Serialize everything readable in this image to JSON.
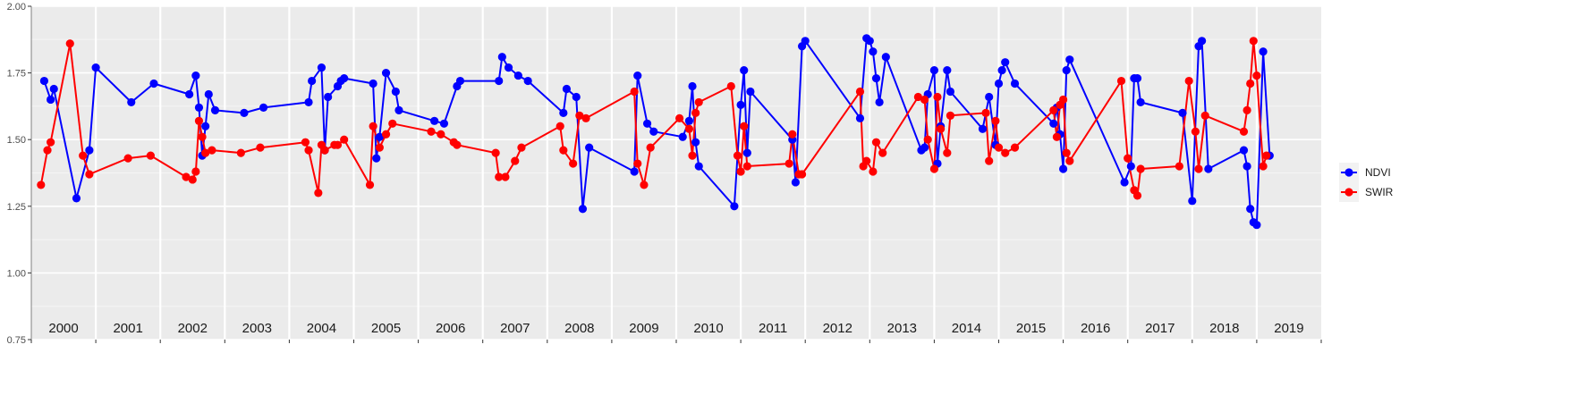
{
  "chart_data": {
    "type": "line",
    "title": "",
    "xlabel": "",
    "ylabel": "",
    "ylim": [
      0.75,
      2.0
    ],
    "yticks": [
      "0.75",
      "1.00",
      "1.25",
      "1.50",
      "1.75",
      "2.00"
    ],
    "years": [
      "2000",
      "2001",
      "2002",
      "2003",
      "2004",
      "2005",
      "2006",
      "2007",
      "2008",
      "2009",
      "2010",
      "2011",
      "2012",
      "2013",
      "2014",
      "2015",
      "2016",
      "2017",
      "2018",
      "2019"
    ],
    "grid": true,
    "legend_position": "right",
    "series": [
      {
        "name": "NDVI",
        "color": "#0000ff",
        "points": [
          [
            2000.2,
            1.72
          ],
          [
            2000.3,
            1.65
          ],
          [
            2000.35,
            1.69
          ],
          [
            2000.7,
            1.28
          ],
          [
            2000.9,
            1.46
          ],
          [
            2001.0,
            1.77
          ],
          [
            2001.55,
            1.64
          ],
          [
            2001.9,
            1.71
          ],
          [
            2002.45,
            1.67
          ],
          [
            2002.55,
            1.74
          ],
          [
            2002.6,
            1.62
          ],
          [
            2002.65,
            1.44
          ],
          [
            2002.7,
            1.55
          ],
          [
            2002.75,
            1.67
          ],
          [
            2002.85,
            1.61
          ],
          [
            2003.3,
            1.6
          ],
          [
            2003.6,
            1.62
          ],
          [
            2004.3,
            1.64
          ],
          [
            2004.35,
            1.72
          ],
          [
            2004.5,
            1.77
          ],
          [
            2004.55,
            1.46
          ],
          [
            2004.6,
            1.66
          ],
          [
            2004.75,
            1.7
          ],
          [
            2004.8,
            1.72
          ],
          [
            2004.85,
            1.73
          ],
          [
            2005.3,
            1.71
          ],
          [
            2005.35,
            1.43
          ],
          [
            2005.4,
            1.51
          ],
          [
            2005.5,
            1.75
          ],
          [
            2005.65,
            1.68
          ],
          [
            2005.7,
            1.61
          ],
          [
            2006.25,
            1.57
          ],
          [
            2006.4,
            1.56
          ],
          [
            2006.6,
            1.7
          ],
          [
            2006.65,
            1.72
          ],
          [
            2007.25,
            1.72
          ],
          [
            2007.3,
            1.81
          ],
          [
            2007.4,
            1.77
          ],
          [
            2007.55,
            1.74
          ],
          [
            2007.7,
            1.72
          ],
          [
            2008.25,
            1.6
          ],
          [
            2008.3,
            1.69
          ],
          [
            2008.45,
            1.66
          ],
          [
            2008.55,
            1.24
          ],
          [
            2008.65,
            1.47
          ],
          [
            2009.35,
            1.38
          ],
          [
            2009.4,
            1.74
          ],
          [
            2009.55,
            1.56
          ],
          [
            2009.65,
            1.53
          ],
          [
            2010.1,
            1.51
          ],
          [
            2010.2,
            1.57
          ],
          [
            2010.25,
            1.7
          ],
          [
            2010.3,
            1.49
          ],
          [
            2010.35,
            1.4
          ],
          [
            2010.9,
            1.25
          ],
          [
            2011.0,
            1.63
          ],
          [
            2011.05,
            1.76
          ],
          [
            2011.1,
            1.45
          ],
          [
            2011.15,
            1.68
          ],
          [
            2011.8,
            1.5
          ],
          [
            2011.85,
            1.34
          ],
          [
            2011.95,
            1.85
          ],
          [
            2012.0,
            1.87
          ],
          [
            2012.85,
            1.58
          ],
          [
            2012.95,
            1.88
          ],
          [
            2013.0,
            1.87
          ],
          [
            2013.05,
            1.83
          ],
          [
            2013.1,
            1.73
          ],
          [
            2013.15,
            1.64
          ],
          [
            2013.25,
            1.81
          ],
          [
            2013.8,
            1.46
          ],
          [
            2013.85,
            1.47
          ],
          [
            2013.9,
            1.67
          ],
          [
            2014.0,
            1.76
          ],
          [
            2014.05,
            1.41
          ],
          [
            2014.1,
            1.55
          ],
          [
            2014.2,
            1.76
          ],
          [
            2014.25,
            1.68
          ],
          [
            2014.75,
            1.54
          ],
          [
            2014.85,
            1.66
          ],
          [
            2014.95,
            1.48
          ],
          [
            2015.0,
            1.71
          ],
          [
            2015.05,
            1.76
          ],
          [
            2015.1,
            1.79
          ],
          [
            2015.25,
            1.71
          ],
          [
            2015.85,
            1.56
          ],
          [
            2015.9,
            1.62
          ],
          [
            2015.95,
            1.52
          ],
          [
            2016.0,
            1.39
          ],
          [
            2016.05,
            1.76
          ],
          [
            2016.1,
            1.8
          ],
          [
            2016.95,
            1.34
          ],
          [
            2017.05,
            1.4
          ],
          [
            2017.1,
            1.73
          ],
          [
            2017.15,
            1.73
          ],
          [
            2017.2,
            1.64
          ],
          [
            2017.85,
            1.6
          ],
          [
            2018.0,
            1.27
          ],
          [
            2018.1,
            1.85
          ],
          [
            2018.15,
            1.87
          ],
          [
            2018.25,
            1.39
          ],
          [
            2018.8,
            1.46
          ],
          [
            2018.85,
            1.4
          ],
          [
            2018.9,
            1.24
          ],
          [
            2018.95,
            1.19
          ],
          [
            2019.0,
            1.18
          ],
          [
            2019.1,
            1.83
          ],
          [
            2019.2,
            1.44
          ]
        ]
      },
      {
        "name": "SWIR",
        "color": "#ff0000",
        "points": [
          [
            2000.15,
            1.33
          ],
          [
            2000.25,
            1.46
          ],
          [
            2000.3,
            1.49
          ],
          [
            2000.6,
            1.86
          ],
          [
            2000.8,
            1.44
          ],
          [
            2000.9,
            1.37
          ],
          [
            2001.5,
            1.43
          ],
          [
            2001.85,
            1.44
          ],
          [
            2002.4,
            1.36
          ],
          [
            2002.5,
            1.35
          ],
          [
            2002.55,
            1.38
          ],
          [
            2002.6,
            1.57
          ],
          [
            2002.65,
            1.51
          ],
          [
            2002.7,
            1.45
          ],
          [
            2002.8,
            1.46
          ],
          [
            2003.25,
            1.45
          ],
          [
            2003.55,
            1.47
          ],
          [
            2004.25,
            1.49
          ],
          [
            2004.3,
            1.46
          ],
          [
            2004.45,
            1.3
          ],
          [
            2004.5,
            1.48
          ],
          [
            2004.55,
            1.46
          ],
          [
            2004.7,
            1.48
          ],
          [
            2004.75,
            1.48
          ],
          [
            2004.85,
            1.5
          ],
          [
            2005.25,
            1.33
          ],
          [
            2005.3,
            1.55
          ],
          [
            2005.4,
            1.47
          ],
          [
            2005.5,
            1.52
          ],
          [
            2005.6,
            1.56
          ],
          [
            2006.2,
            1.53
          ],
          [
            2006.35,
            1.52
          ],
          [
            2006.55,
            1.49
          ],
          [
            2006.6,
            1.48
          ],
          [
            2007.2,
            1.45
          ],
          [
            2007.25,
            1.36
          ],
          [
            2007.35,
            1.36
          ],
          [
            2007.5,
            1.42
          ],
          [
            2007.6,
            1.47
          ],
          [
            2008.2,
            1.55
          ],
          [
            2008.25,
            1.46
          ],
          [
            2008.4,
            1.41
          ],
          [
            2008.5,
            1.59
          ],
          [
            2008.6,
            1.58
          ],
          [
            2009.35,
            1.68
          ],
          [
            2009.4,
            1.41
          ],
          [
            2009.5,
            1.33
          ],
          [
            2009.6,
            1.47
          ],
          [
            2010.05,
            1.58
          ],
          [
            2010.2,
            1.54
          ],
          [
            2010.25,
            1.44
          ],
          [
            2010.3,
            1.6
          ],
          [
            2010.35,
            1.64
          ],
          [
            2010.85,
            1.7
          ],
          [
            2010.95,
            1.44
          ],
          [
            2011.0,
            1.38
          ],
          [
            2011.05,
            1.55
          ],
          [
            2011.1,
            1.4
          ],
          [
            2011.75,
            1.41
          ],
          [
            2011.8,
            1.52
          ],
          [
            2011.9,
            1.37
          ],
          [
            2011.95,
            1.37
          ],
          [
            2012.85,
            1.68
          ],
          [
            2012.9,
            1.4
          ],
          [
            2012.95,
            1.42
          ],
          [
            2013.05,
            1.38
          ],
          [
            2013.1,
            1.49
          ],
          [
            2013.2,
            1.45
          ],
          [
            2013.75,
            1.66
          ],
          [
            2013.85,
            1.65
          ],
          [
            2013.9,
            1.5
          ],
          [
            2014.0,
            1.39
          ],
          [
            2014.05,
            1.66
          ],
          [
            2014.1,
            1.54
          ],
          [
            2014.2,
            1.45
          ],
          [
            2014.25,
            1.59
          ],
          [
            2014.8,
            1.6
          ],
          [
            2014.85,
            1.42
          ],
          [
            2014.95,
            1.57
          ],
          [
            2015.0,
            1.47
          ],
          [
            2015.1,
            1.45
          ],
          [
            2015.25,
            1.47
          ],
          [
            2015.85,
            1.61
          ],
          [
            2015.9,
            1.51
          ],
          [
            2015.95,
            1.63
          ],
          [
            2016.0,
            1.65
          ],
          [
            2016.05,
            1.45
          ],
          [
            2016.1,
            1.42
          ],
          [
            2016.9,
            1.72
          ],
          [
            2017.0,
            1.43
          ],
          [
            2017.1,
            1.31
          ],
          [
            2017.15,
            1.29
          ],
          [
            2017.2,
            1.39
          ],
          [
            2017.8,
            1.4
          ],
          [
            2017.95,
            1.72
          ],
          [
            2018.05,
            1.53
          ],
          [
            2018.1,
            1.39
          ],
          [
            2018.2,
            1.59
          ],
          [
            2018.8,
            1.53
          ],
          [
            2018.85,
            1.61
          ],
          [
            2018.9,
            1.71
          ],
          [
            2018.95,
            1.87
          ],
          [
            2019.0,
            1.74
          ],
          [
            2019.1,
            1.4
          ],
          [
            2019.15,
            1.44
          ]
        ]
      }
    ]
  }
}
